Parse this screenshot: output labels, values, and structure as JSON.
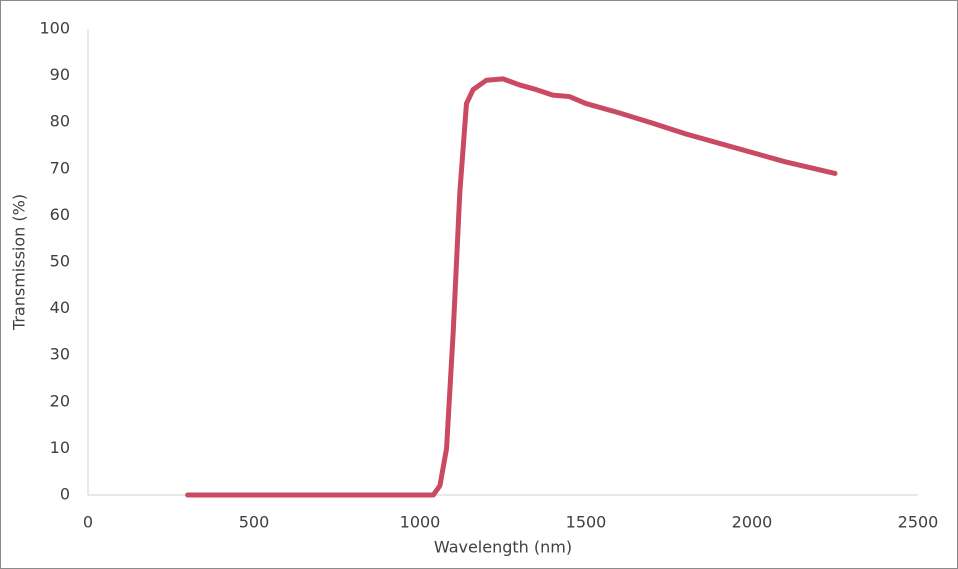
{
  "chart_data": {
    "type": "line",
    "x_label": "Wavelength (nm)",
    "y_label": "Transmission (%)",
    "xlim": [
      0,
      2500
    ],
    "xticks": [
      0,
      500,
      1000,
      1500,
      2000,
      2500
    ],
    "ylim": [
      0,
      100
    ],
    "yticks": [
      0,
      10,
      20,
      30,
      40,
      50,
      60,
      70,
      80,
      90,
      100
    ],
    "grid": false,
    "series": [
      {
        "color": "#c94a62",
        "x": [
          300,
          1000,
          1040,
          1060,
          1080,
          1100,
          1120,
          1140,
          1160,
          1200,
          1250,
          1300,
          1350,
          1400,
          1450,
          1500,
          1600,
          1700,
          1800,
          1900,
          2000,
          2100,
          2250
        ],
        "values": [
          0,
          0,
          0,
          2,
          10,
          35,
          65,
          84,
          87,
          89,
          89.3,
          88,
          87,
          85.8,
          85.5,
          84,
          82,
          79.8,
          77.5,
          75.5,
          73.5,
          71.5,
          69
        ]
      }
    ]
  }
}
